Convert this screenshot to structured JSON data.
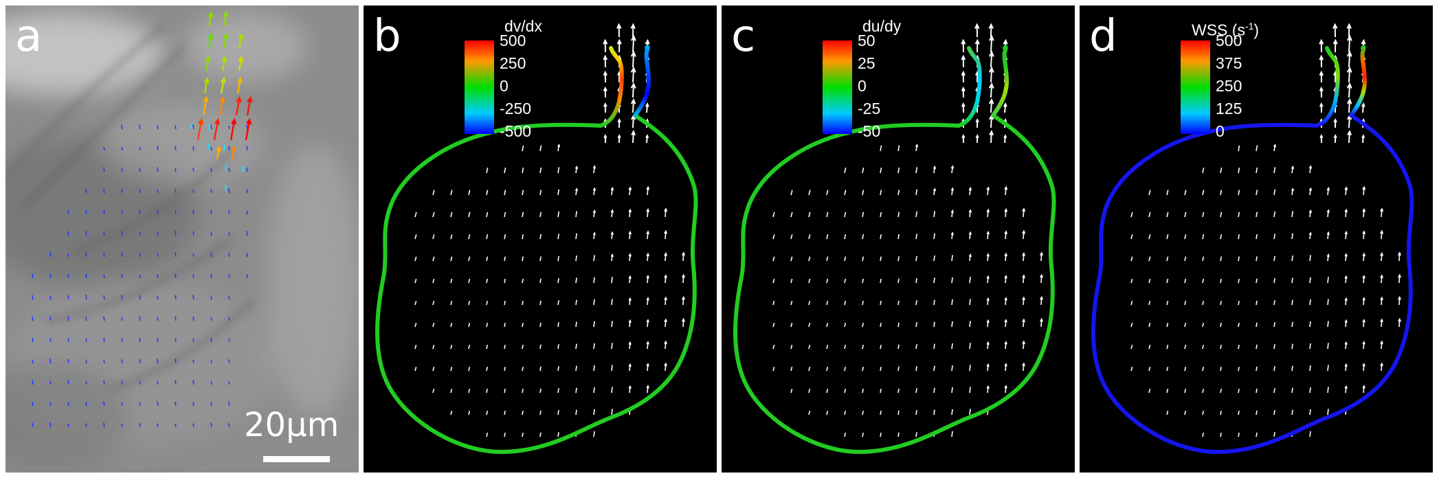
{
  "panels": {
    "a": {
      "label": "a",
      "scale_bar_text": "20μm"
    },
    "b": {
      "label": "b",
      "colorbar_title": "dv/dx",
      "ticks": [
        "500",
        "250",
        "0",
        "-250",
        "-500"
      ]
    },
    "c": {
      "label": "c",
      "colorbar_title": "du/dy",
      "ticks": [
        "50",
        "25",
        "0",
        "-25",
        "-50"
      ]
    },
    "d": {
      "label": "d",
      "colorbar_title": "WSS (s",
      "colorbar_title_sup": "-1",
      "colorbar_title_end": ")",
      "ticks": [
        "500",
        "375",
        "250",
        "125",
        "0"
      ]
    }
  },
  "colors": {
    "field_background": "#000000",
    "vector_color": "#ffffff",
    "wall_low": "#0000ff",
    "wall_mid": "#00dd00",
    "wall_high": "#ff0000"
  }
}
